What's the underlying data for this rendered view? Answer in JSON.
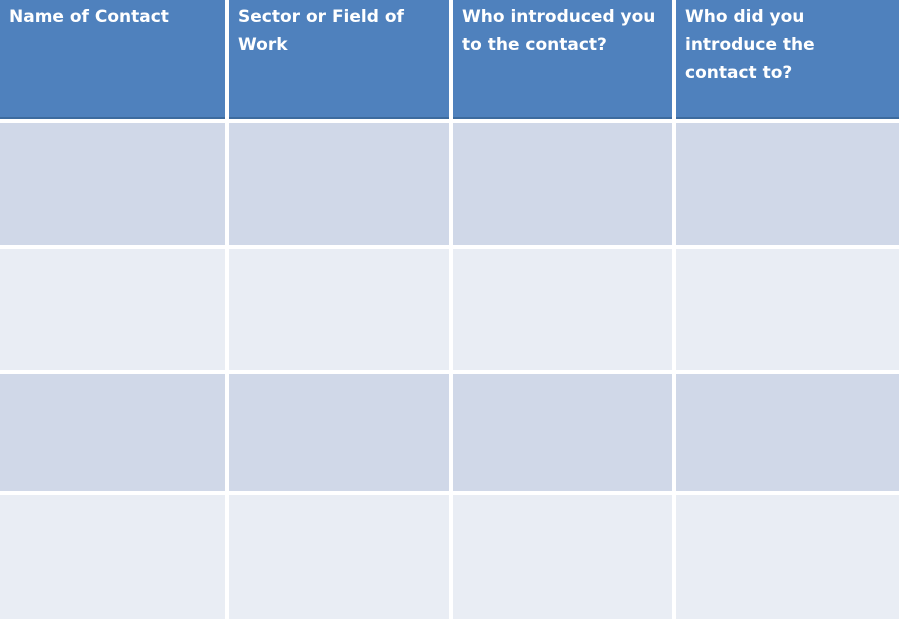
{
  "table": {
    "title": "networking-contacts-table",
    "headers": [
      "Name of Contact",
      "Sector or Field of\nWork",
      "Who introduced you\nto the contact?",
      "Who did you\nintroduce the\ncontact to?"
    ],
    "rows": [
      {
        "cells": [
          "",
          "",
          "",
          ""
        ]
      },
      {
        "cells": [
          "",
          "",
          "",
          ""
        ]
      },
      {
        "cells": [
          "",
          "",
          "",
          ""
        ]
      },
      {
        "cells": [
          "",
          "",
          "",
          ""
        ]
      }
    ],
    "colors": {
      "header_bg": "#4F81BD",
      "header_border_bottom": "#3D6B9E",
      "header_text": "#FFFFFF",
      "row_band_dark": "#D0D8E8",
      "row_band_light": "#E9EDF4",
      "gridline": "#FFFFFF"
    }
  }
}
